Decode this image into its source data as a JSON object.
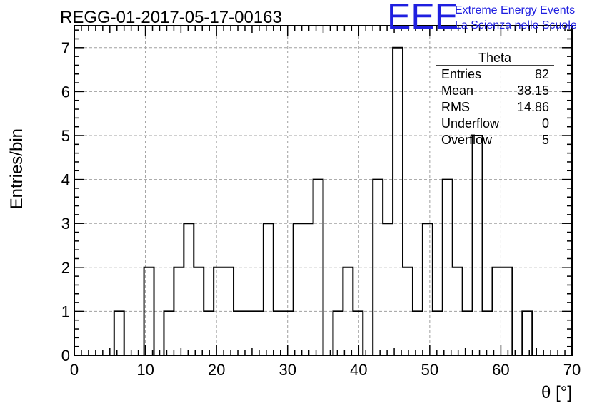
{
  "chart_data": {
    "type": "bar",
    "title": "REGG-01-2017-05-17-00163",
    "xlabel": "θ [°]",
    "ylabel": "Entries/bin",
    "xlim": [
      0,
      70
    ],
    "ylim": [
      0,
      7.5
    ],
    "xticks": [
      0,
      10,
      20,
      30,
      40,
      50,
      60,
      70
    ],
    "yticks": [
      0,
      1,
      2,
      3,
      4,
      5,
      6,
      7
    ],
    "grid": true,
    "bin_width": 1.4,
    "values": [
      0,
      0,
      0,
      0,
      1,
      0,
      0,
      2,
      0,
      1,
      2,
      3,
      2,
      1,
      2,
      2,
      1,
      1,
      1,
      3,
      1,
      1,
      3,
      3,
      4,
      0,
      1,
      2,
      1,
      0,
      4,
      3,
      7,
      2,
      1,
      3,
      1,
      4,
      2,
      1,
      5,
      1,
      2,
      2,
      0,
      1,
      0,
      0,
      0,
      0
    ],
    "stats": {
      "name": "Theta",
      "rows": [
        {
          "label": "Entries",
          "value": "82"
        },
        {
          "label": "Mean",
          "value": "38.15"
        },
        {
          "label": "RMS",
          "value": "14.86"
        },
        {
          "label": "Underflow",
          "value": "0"
        },
        {
          "label": "Overflow",
          "value": "5"
        }
      ],
      "placement": "top-right"
    }
  },
  "logo": {
    "letters": "EEE",
    "line1": "Extreme Energy Events",
    "line2": "La Scienza nelle Scuole"
  },
  "colors": {
    "histogram": "#000000",
    "grid": "#a0a0a0",
    "logo": "#1f1fe0"
  }
}
